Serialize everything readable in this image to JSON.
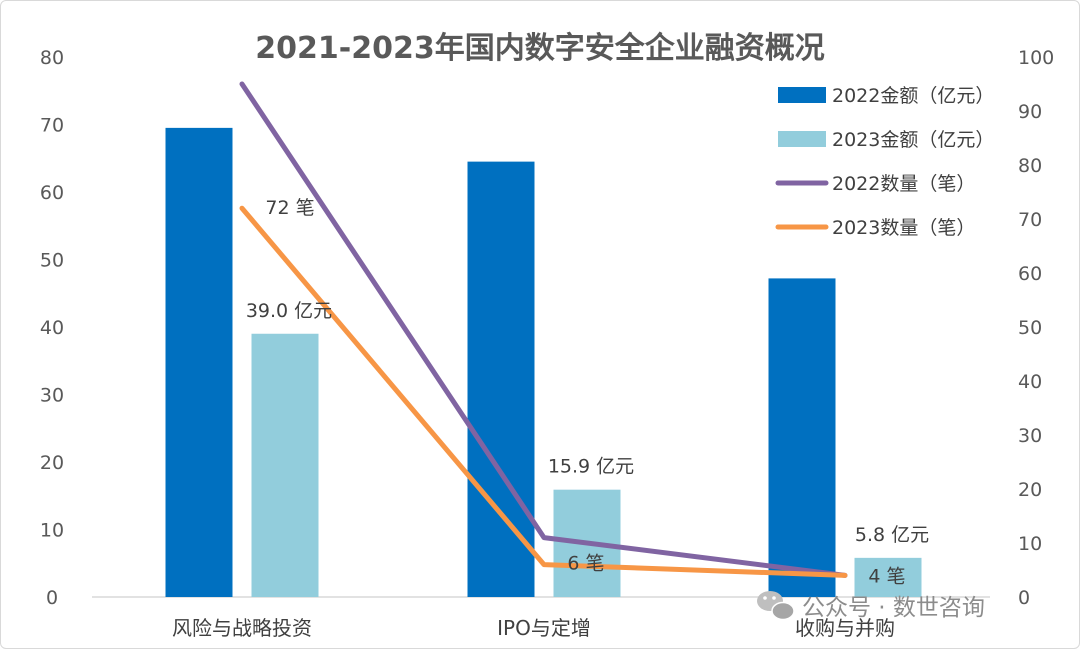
{
  "chart_data": {
    "type": "bar",
    "title": "2021-2023年国内数字安全企业融资概况",
    "categories": [
      "风险与战略投资",
      "IPO与定增",
      "收购与并购"
    ],
    "y_left": {
      "ylim": [
        0,
        80
      ],
      "ticks": [
        0,
        10,
        20,
        30,
        40,
        50,
        60,
        70,
        80
      ]
    },
    "y_right": {
      "ylim": [
        0,
        100
      ],
      "ticks": [
        0,
        10,
        20,
        30,
        40,
        50,
        60,
        70,
        80,
        90,
        100
      ]
    },
    "bar_series": [
      {
        "name": "2022金额（亿元）",
        "color": "#0070c0",
        "axis": "left",
        "values": [
          69.5,
          64.5,
          47.2
        ]
      },
      {
        "name": "2023金额（亿元）",
        "color": "#92cddc",
        "axis": "left",
        "values": [
          39.0,
          15.9,
          5.8
        ],
        "labels": [
          "39.0 亿元",
          "15.9 亿元",
          "5.8 亿元"
        ]
      }
    ],
    "line_series": [
      {
        "name": "2022数量（笔）",
        "color": "#8064a2",
        "axis": "right",
        "values": [
          95,
          11,
          4
        ]
      },
      {
        "name": "2023数量（笔）",
        "color": "#f79646",
        "axis": "right",
        "values": [
          72,
          6,
          4
        ],
        "labels": [
          "72 笔",
          "6 笔",
          "4 笔"
        ]
      }
    ],
    "legend_position": "top-right"
  },
  "watermark": {
    "text": "公众号 · 数世咨询",
    "icon": "wechat-icon"
  }
}
